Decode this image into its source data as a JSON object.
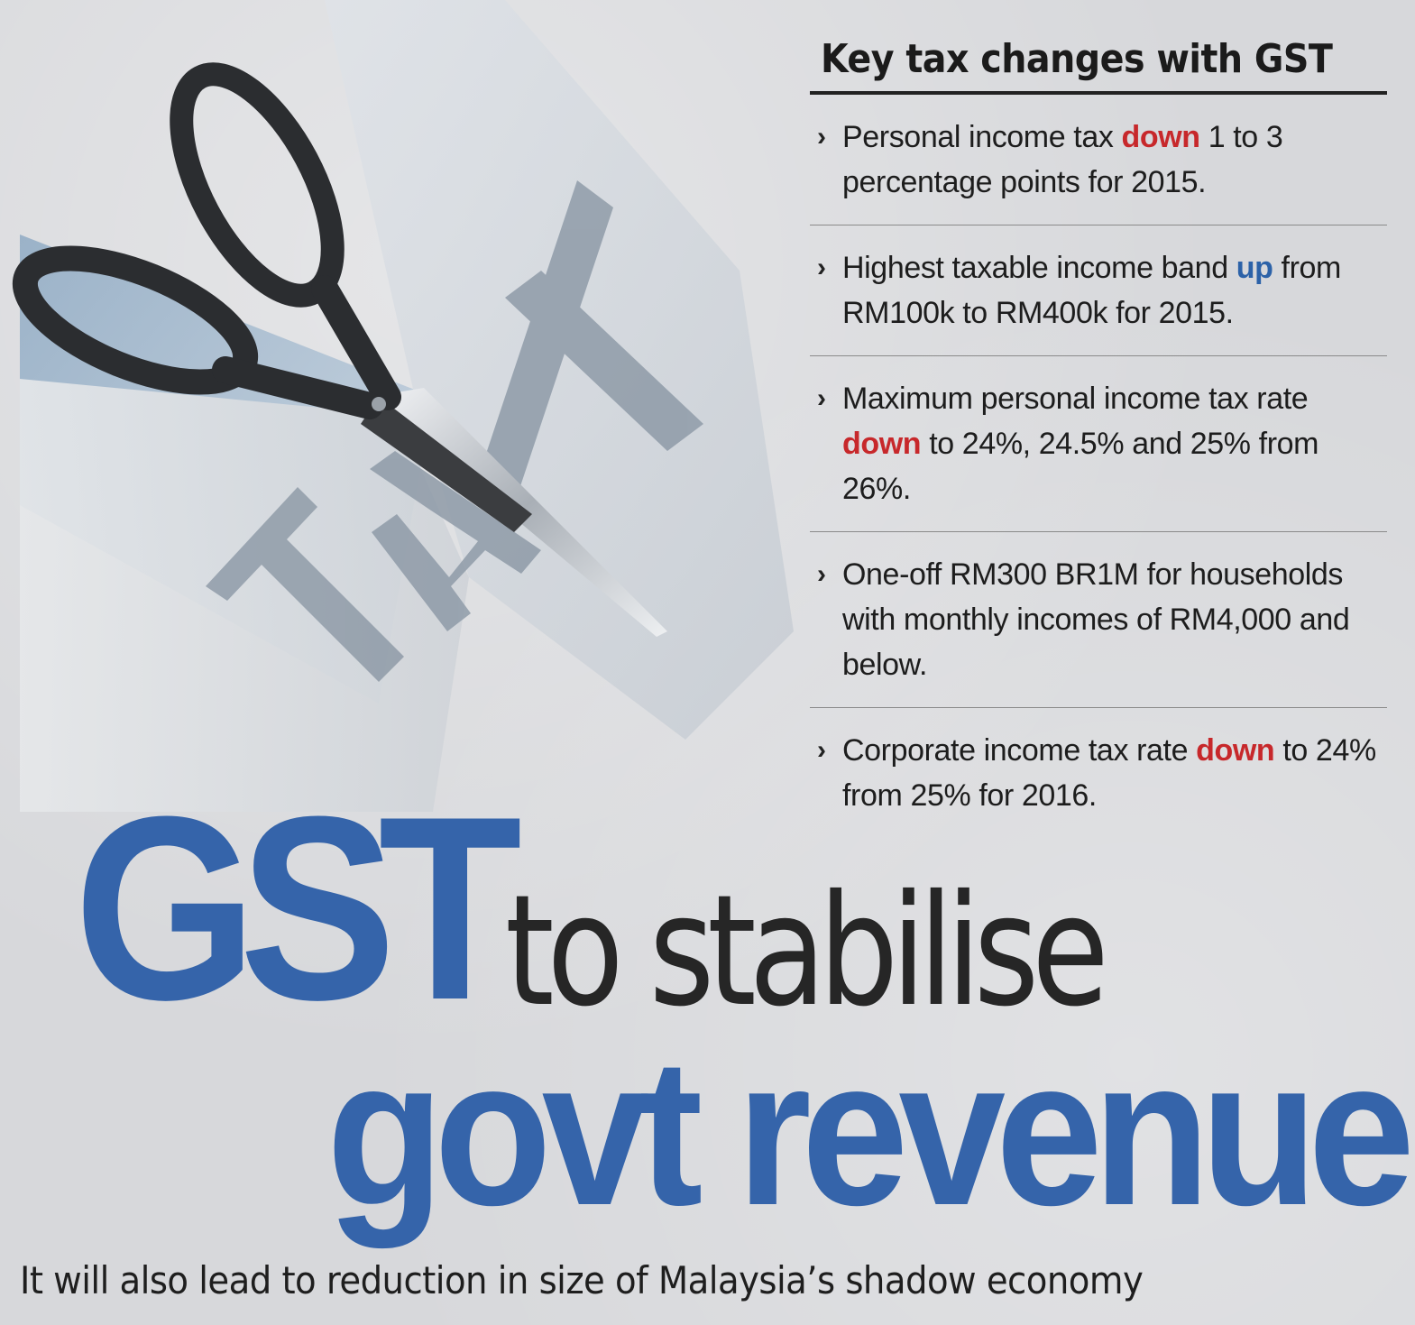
{
  "sidebar": {
    "title": "Key tax changes with GST",
    "items": [
      {
        "pre": "Personal income tax ",
        "hl": "down",
        "post": " 1 to 3 percentage points for 2015.",
        "hl_color": "red"
      },
      {
        "pre": "Highest taxable income band ",
        "hl": "up",
        "post": " from RM100k to RM400k for 2015.",
        "hl_color": "blue"
      },
      {
        "pre": "Maximum personal income tax rate ",
        "hl": "down",
        "post": " to 24%, 24.5% and 25% from 26%.",
        "hl_color": "red"
      },
      {
        "pre": "One-off RM300 BR1M for households with monthly incomes of RM4,000 and below.",
        "hl": "",
        "post": "",
        "hl_color": ""
      },
      {
        "pre": "Corporate income tax rate ",
        "hl": "down",
        "post": " to 24% from 25% for 2016.",
        "hl_color": "red"
      }
    ]
  },
  "headline": {
    "word1": "GST",
    "word2": "to stabilise",
    "word3": "govt revenue"
  },
  "subhead": "It will also lead to reduction in size of Malaysia’s shadow economy",
  "illustration": {
    "paper_text": "TAX",
    "icon": "scissors-icon"
  },
  "colors": {
    "headline_blue": "#3564aa",
    "highlight_red": "#c7282b",
    "highlight_blue": "#2c62a8"
  }
}
